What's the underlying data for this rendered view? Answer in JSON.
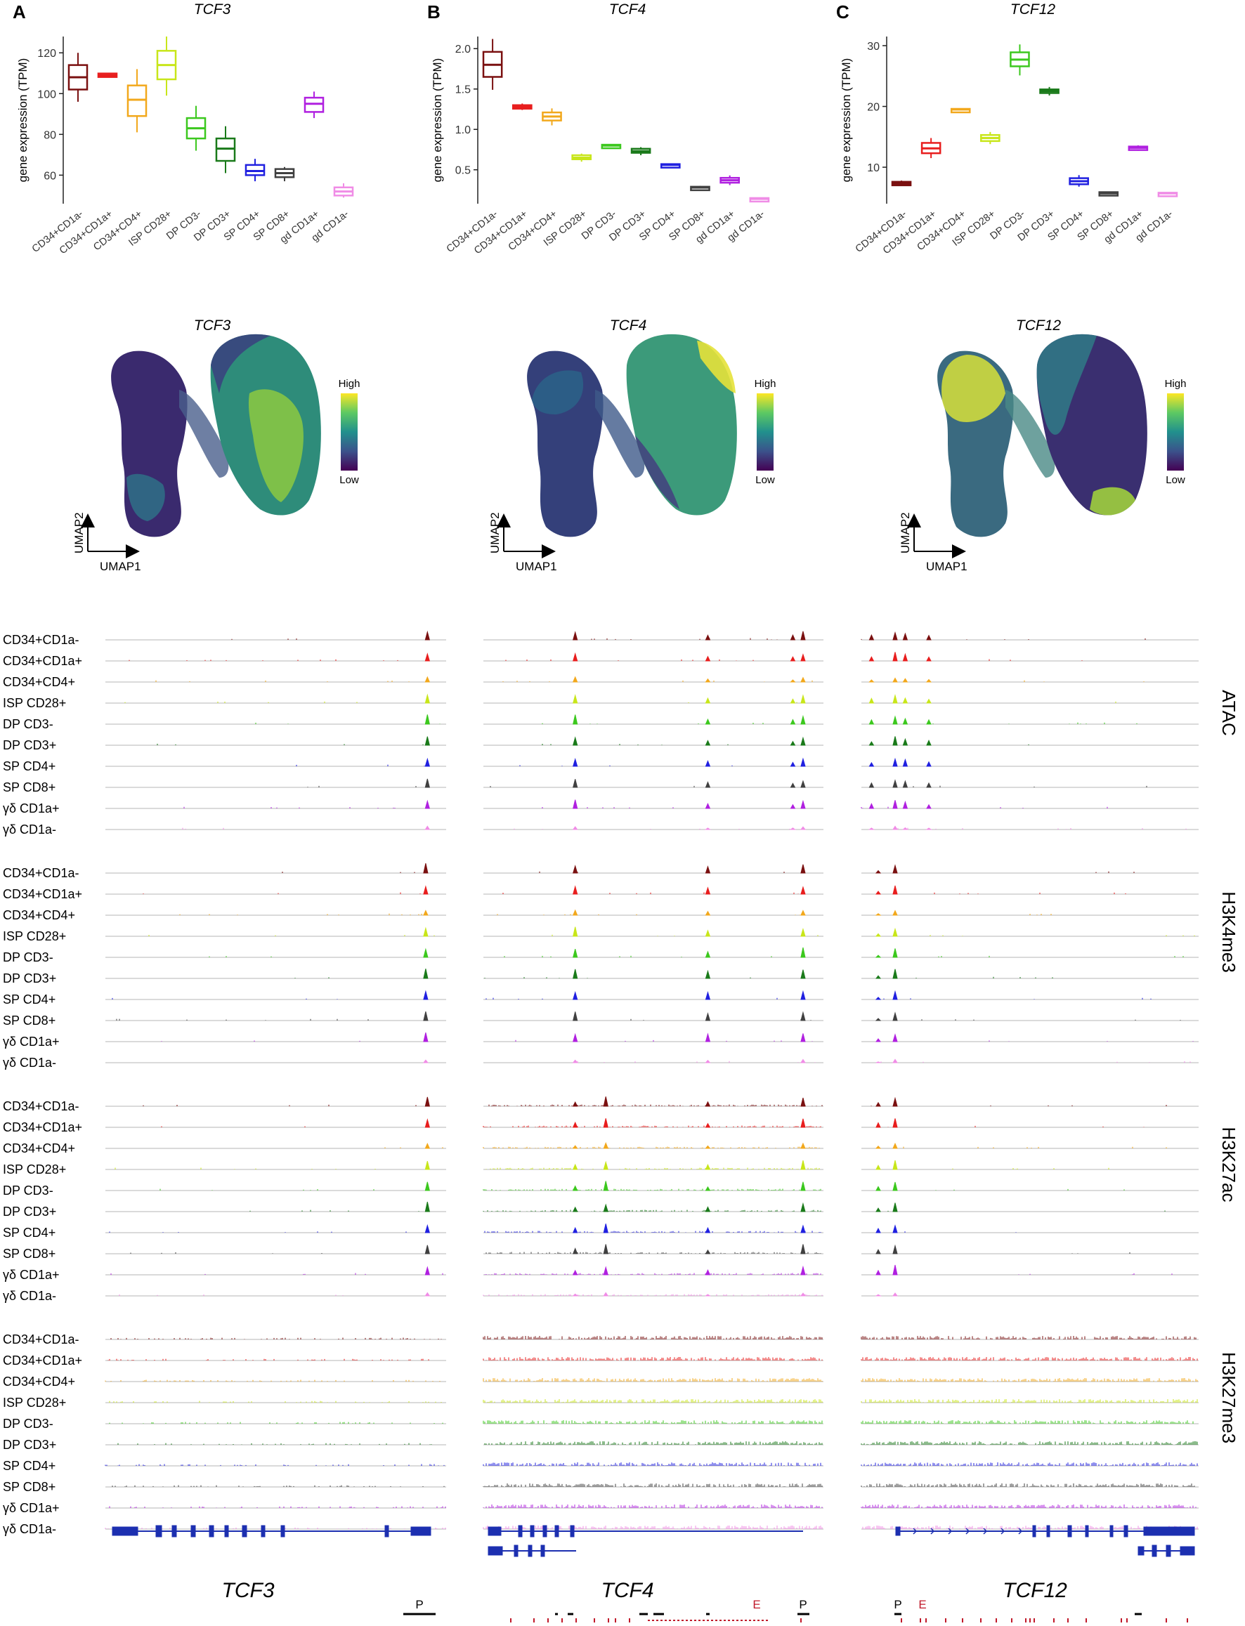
{
  "cell_types": [
    "CD34+CD1a-",
    "CD34+CD1a+",
    "CD34+CD4+",
    "ISP CD28+",
    "DP CD3-",
    "DP CD3+",
    "SP CD4+",
    "SP CD8+",
    "gd CD1a+",
    "gd CD1a-"
  ],
  "track_labels": [
    "CD34+CD1a-",
    "CD34+CD1a+",
    "CD34+CD4+",
    "ISP CD28+",
    "DP CD3-",
    "DP CD3+",
    "SP CD4+",
    "SP CD8+",
    "γδ CD1a+",
    "γδ CD1a-"
  ],
  "colors": [
    "#7a1010",
    "#e81e1e",
    "#f2a81c",
    "#c8e61a",
    "#3cc81e",
    "#1a7a1a",
    "#2020e0",
    "#404040",
    "#b020e0",
    "#f08ce6"
  ],
  "chart_data": [
    {
      "panel": "A",
      "type": "box",
      "title": "TCF3",
      "ylabel": "gene expression (TPM)",
      "ylim": [
        46,
        128
      ],
      "yticks": [
        60,
        80,
        100,
        120
      ],
      "categories": [
        "CD34+CD1a-",
        "CD34+CD1a+",
        "CD34+CD4+",
        "ISP CD28+",
        "DP CD3-",
        "DP CD3+",
        "SP CD4+",
        "SP CD8+",
        "gd CD1a+",
        "gd CD1a-"
      ],
      "boxes": [
        {
          "min": 96,
          "q1": 102,
          "median": 108,
          "q3": 114,
          "max": 120
        },
        {
          "min": 109,
          "q1": 109,
          "median": 109,
          "q3": 109,
          "max": 109
        },
        {
          "min": 81,
          "q1": 89,
          "median": 97,
          "q3": 104,
          "max": 112
        },
        {
          "min": 99,
          "q1": 107,
          "median": 114,
          "q3": 121,
          "max": 128
        },
        {
          "min": 72,
          "q1": 78,
          "median": 83,
          "q3": 88,
          "max": 94
        },
        {
          "min": 61,
          "q1": 67,
          "median": 73,
          "q3": 78,
          "max": 84
        },
        {
          "min": 57,
          "q1": 60,
          "median": 62,
          "q3": 65,
          "max": 68
        },
        {
          "min": 57,
          "q1": 59,
          "median": 61,
          "q3": 63,
          "max": 64
        },
        {
          "min": 88,
          "q1": 91,
          "median": 95,
          "q3": 98,
          "max": 101
        },
        {
          "min": 49,
          "q1": 50,
          "median": 52,
          "q3": 54,
          "max": 56
        }
      ]
    },
    {
      "panel": "B",
      "type": "box",
      "title": "TCF4",
      "ylabel": "gene expression (TPM)",
      "ylim": [
        0.08,
        2.15
      ],
      "yticks": [
        0.5,
        1.0,
        1.5,
        2.0
      ],
      "ytick_labels": [
        "0.5",
        "1.0",
        "1.5",
        "2.0"
      ],
      "categories": [
        "CD34+CD1a-",
        "CD34+CD1a+",
        "CD34+CD4+",
        "ISP CD28+",
        "DP CD3-",
        "DP CD3+",
        "SP CD4+",
        "SP CD8+",
        "gd CD1a+",
        "gd CD1a-"
      ],
      "boxes": [
        {
          "min": 1.49,
          "q1": 1.65,
          "median": 1.8,
          "q3": 1.96,
          "max": 2.12
        },
        {
          "min": 1.24,
          "q1": 1.26,
          "median": 1.28,
          "q3": 1.3,
          "max": 1.32
        },
        {
          "min": 1.05,
          "q1": 1.11,
          "median": 1.16,
          "q3": 1.21,
          "max": 1.26
        },
        {
          "min": 0.6,
          "q1": 0.63,
          "median": 0.65,
          "q3": 0.68,
          "max": 0.7
        },
        {
          "min": 0.79,
          "q1": 0.79,
          "median": 0.8,
          "q3": 0.81,
          "max": 0.81
        },
        {
          "min": 0.68,
          "q1": 0.71,
          "median": 0.73,
          "q3": 0.76,
          "max": 0.78
        },
        {
          "min": 0.55,
          "q1": 0.55,
          "median": 0.56,
          "q3": 0.57,
          "max": 0.57
        },
        {
          "min": 0.27,
          "q1": 0.28,
          "median": 0.28,
          "q3": 0.29,
          "max": 0.3
        },
        {
          "min": 0.31,
          "q1": 0.34,
          "median": 0.37,
          "q3": 0.4,
          "max": 0.43
        },
        {
          "min": 0.12,
          "q1": 0.13,
          "median": 0.14,
          "q3": 0.15,
          "max": 0.15
        }
      ]
    },
    {
      "panel": "C",
      "type": "box",
      "title": "TCF12",
      "ylabel": "gene expression (TPM)",
      "ylim": [
        4,
        31.5
      ],
      "yticks": [
        10,
        20,
        30
      ],
      "categories": [
        "CD34+CD1a-",
        "CD34+CD1a+",
        "CD34+CD4+",
        "ISP CD28+",
        "DP CD3-",
        "DP CD3+",
        "SP CD4+",
        "SP CD8+",
        "gd CD1a+",
        "gd CD1a-"
      ],
      "boxes": [
        {
          "min": 7,
          "q1": 7.1,
          "median": 7.3,
          "q3": 7.6,
          "max": 7.8
        },
        {
          "min": 11.5,
          "q1": 12.3,
          "median": 13.1,
          "q3": 14,
          "max": 14.8
        },
        {
          "min": 19.3,
          "q1": 19.4,
          "median": 19.5,
          "q3": 19.6,
          "max": 19.7
        },
        {
          "min": 13.8,
          "q1": 14.3,
          "median": 14.8,
          "q3": 15.3,
          "max": 15.8
        },
        {
          "min": 25.1,
          "q1": 26.6,
          "median": 27.7,
          "q3": 28.9,
          "max": 30.2
        },
        {
          "min": 21.8,
          "q1": 22.2,
          "median": 22.5,
          "q3": 22.8,
          "max": 23.2
        },
        {
          "min": 6.8,
          "q1": 7.2,
          "median": 7.7,
          "q3": 8.2,
          "max": 8.7
        },
        {
          "min": 5.4,
          "q1": 5.5,
          "median": 5.7,
          "q3": 5.9,
          "max": 6.0
        },
        {
          "min": 12.7,
          "q1": 13,
          "median": 13.2,
          "q3": 13.4,
          "max": 13.6
        },
        {
          "min": 5.5,
          "q1": 5.6,
          "median": 5.7,
          "q3": 5.8,
          "max": 5.9
        }
      ]
    }
  ],
  "panel_letters": [
    "A",
    "B",
    "C"
  ],
  "gene_names": [
    "TCF3",
    "TCF4",
    "TCF12"
  ],
  "umap": {
    "legend_high": "High",
    "legend_low": "Low",
    "axis_x": "UMAP1",
    "axis_y": "UMAP2"
  },
  "track_groups": [
    "ATAC",
    "H3K4me3",
    "H3K27ac",
    "H3K27me3"
  ],
  "annotations": {
    "tcf3": [
      "P"
    ],
    "tcf4": [
      "E",
      "P"
    ],
    "tcf12": [
      "P",
      "E"
    ]
  }
}
